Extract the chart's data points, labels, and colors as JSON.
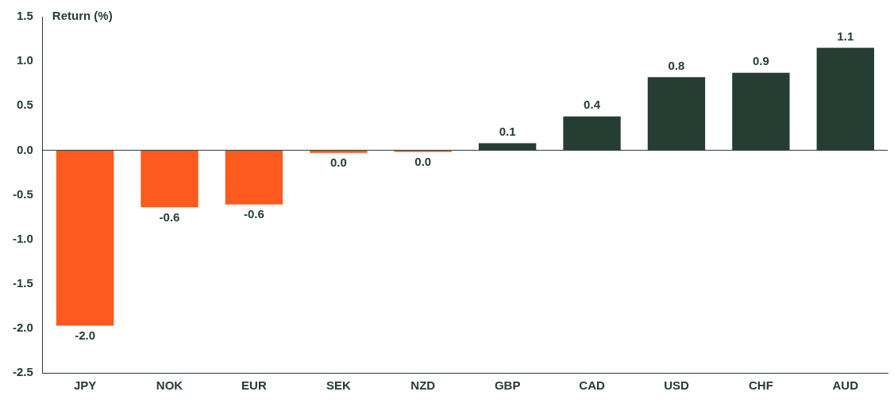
{
  "chart_data": {
    "type": "bar",
    "ylabel": "Return (%)",
    "categories": [
      "JPY",
      "NOK",
      "EUR",
      "SEK",
      "NZD",
      "GBP",
      "CAD",
      "USD",
      "CHF",
      "AUD"
    ],
    "values": [
      -1.97,
      -0.64,
      -0.61,
      -0.03,
      -0.02,
      0.08,
      0.38,
      0.82,
      0.87,
      1.15
    ],
    "colors": [
      "#fc5a1e",
      "#fc5a1e",
      "#fc5a1e",
      "#fc5a1e",
      "#fc5a1e",
      "#263d33",
      "#263d33",
      "#263d33",
      "#263d33",
      "#263d33"
    ],
    "value_labels": [
      "-2.0",
      "-0.6",
      "-0.6",
      "0.0",
      "0.0",
      "0.1",
      "0.4",
      "0.8",
      "0.9",
      "1.1"
    ],
    "ylim": [
      -2.5,
      1.5
    ],
    "yticks": [
      {
        "value": -2.5,
        "label": "-2.5"
      },
      {
        "value": -2,
        "label": "-2.0"
      },
      {
        "value": -1.5,
        "label": "-1.5"
      },
      {
        "value": -1,
        "label": "-1.0"
      },
      {
        "value": -0.5,
        "label": "-0.5"
      },
      {
        "value": 0,
        "label": "0.0"
      },
      {
        "value": 0.5,
        "label": "0.5"
      },
      {
        "value": 1,
        "label": "1.0"
      },
      {
        "value": 1.5,
        "label": "1.5"
      }
    ],
    "ref_lines": [
      {
        "axis": "y",
        "value": 0,
        "color": "#263d33"
      }
    ],
    "grid": false,
    "legend": false
  }
}
